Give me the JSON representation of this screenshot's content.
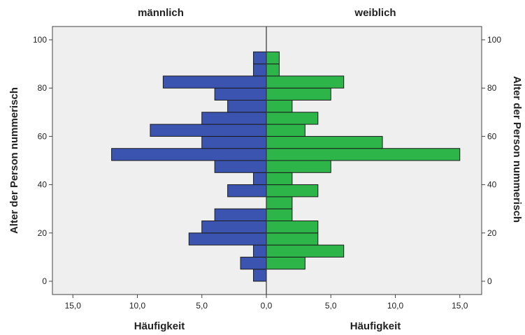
{
  "chart_data": {
    "type": "bar",
    "orientation": "horizontal",
    "layout": "population-pyramid",
    "groups": [
      "männlich",
      "weiblich"
    ],
    "y_label": "Alter der Person nummerisch",
    "y_ticks": [
      "0",
      "20",
      "40",
      "60",
      "80",
      "100"
    ],
    "ylim": [
      -5,
      105
    ],
    "bin_width": 5,
    "x_label": "Häufigkeit",
    "x_tick_labels": [
      "15,0",
      "10,0",
      "5,0",
      "0,0",
      "5,0",
      "10,0",
      "15,0"
    ],
    "xlim": [
      0,
      16
    ],
    "grid": false,
    "bins": [
      0,
      5,
      10,
      15,
      20,
      25,
      30,
      35,
      40,
      45,
      50,
      55,
      60,
      65,
      70,
      75,
      80,
      85,
      90
    ],
    "series": [
      {
        "name": "männlich",
        "side": "left",
        "color": "#3A54B0",
        "values": [
          1,
          2,
          1,
          6,
          5,
          4,
          0,
          3,
          1,
          4,
          12,
          5,
          9,
          5,
          3,
          4,
          8,
          1,
          1
        ]
      },
      {
        "name": "weiblich",
        "side": "right",
        "color": "#2DB54A",
        "values": [
          0,
          3,
          6,
          4,
          4,
          2,
          2,
          4,
          2,
          5,
          15,
          9,
          3,
          4,
          2,
          5,
          6,
          1,
          1
        ]
      }
    ],
    "plot_background": "#EFEFEF"
  }
}
